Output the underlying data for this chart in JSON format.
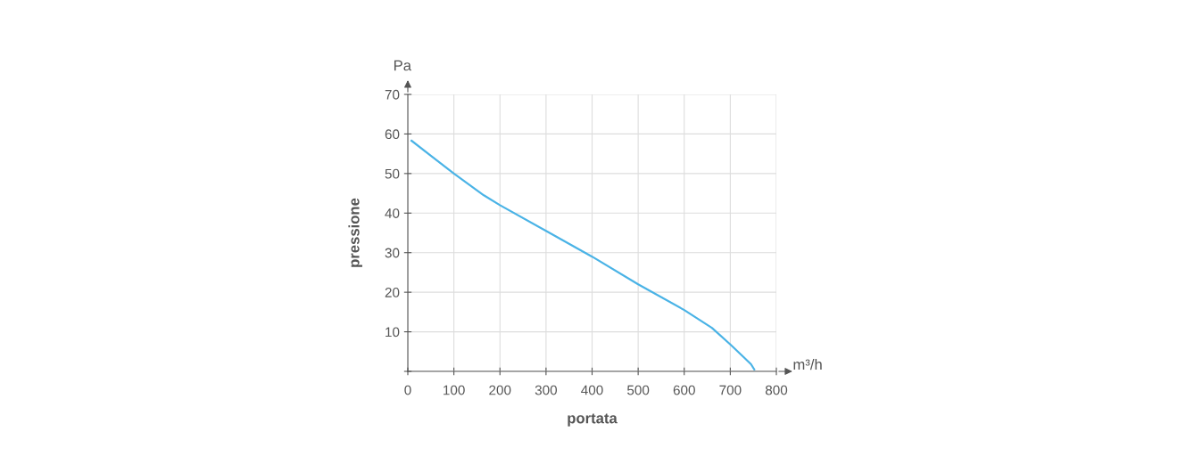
{
  "chart_data": {
    "type": "line",
    "xlabel": "portata",
    "ylabel": "pressione",
    "annotations": [
      "Pa",
      "m³/h"
    ],
    "x": [
      8,
      50,
      100,
      165,
      200,
      300,
      400,
      500,
      600,
      660,
      700,
      730,
      745,
      752
    ],
    "series": [
      {
        "color": "#4ab3e6",
        "values": [
          58.3,
          54.5,
          50,
          44.5,
          42,
          35.5,
          29,
          22,
          15.5,
          11,
          6.8,
          3.5,
          1.8,
          0.5
        ]
      }
    ],
    "xlim": [
      0,
      800
    ],
    "xticks": [
      0,
      100,
      200,
      300,
      400,
      500,
      600,
      700,
      800
    ],
    "ylim": [
      0,
      70
    ],
    "yticks": [
      {
        "value": 0,
        "label": null
      },
      10,
      20,
      30,
      40,
      50,
      60,
      70
    ],
    "grid": true,
    "legend": false,
    "marker": "none",
    "line_style": "solid"
  }
}
